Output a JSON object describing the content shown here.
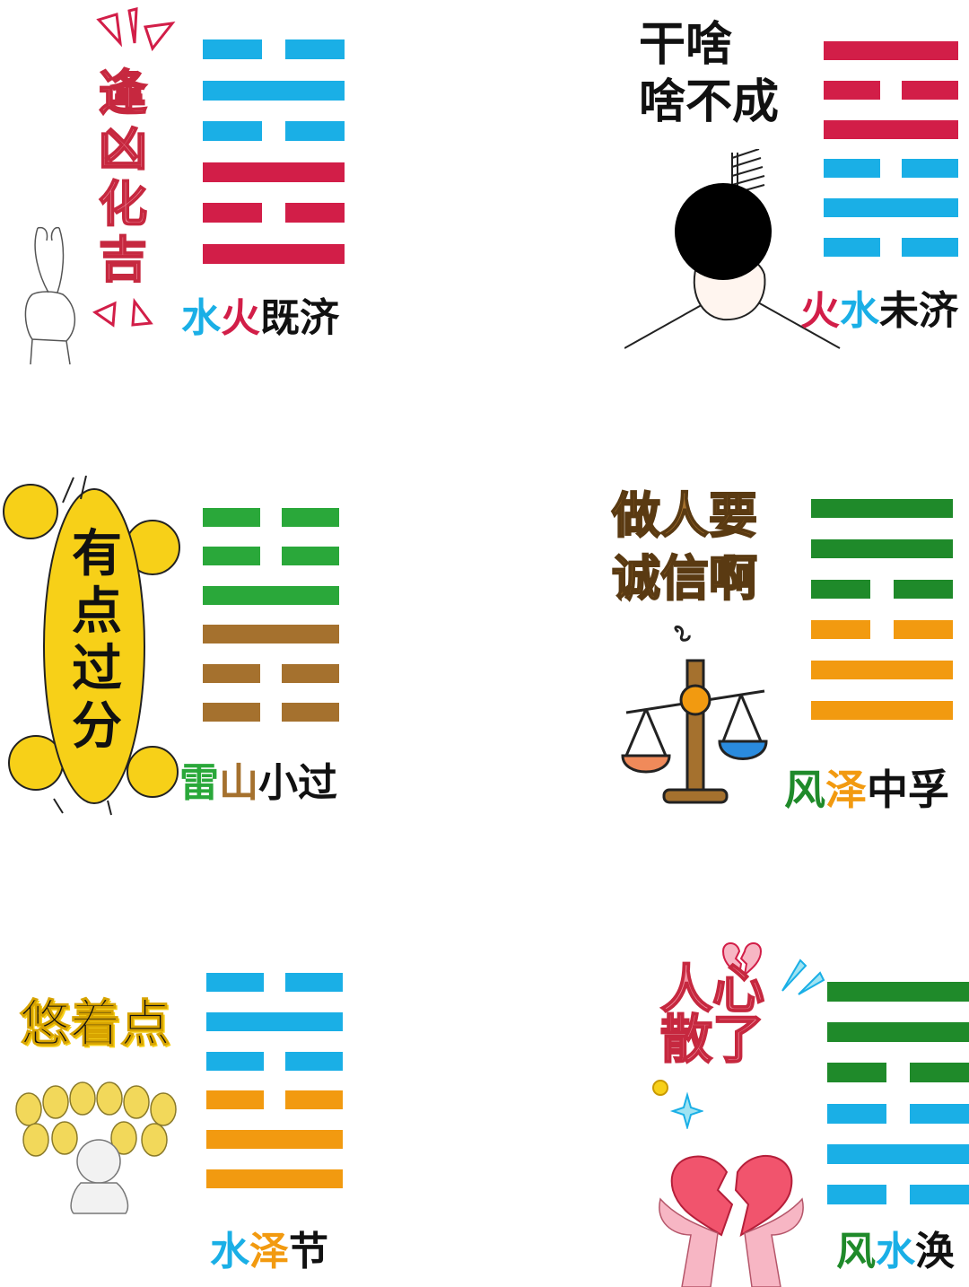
{
  "colors": {
    "blue": "#1aafe6",
    "red": "#d21e48",
    "green": "#2aa83a",
    "dark_green": "#1f8a2a",
    "brown": "#a5712e",
    "orange": "#f29a10",
    "black": "#111111"
  },
  "panels": [
    {
      "sticker_text": "逢凶化吉",
      "name_chars": [
        {
          "ch": "水",
          "color": "blue"
        },
        {
          "ch": "火",
          "color": "red"
        },
        {
          "ch": "既",
          "color": "black"
        },
        {
          "ch": "济",
          "color": "black"
        }
      ],
      "lines": [
        {
          "type": "yin",
          "color": "blue"
        },
        {
          "type": "yang",
          "color": "blue"
        },
        {
          "type": "yin",
          "color": "blue"
        },
        {
          "type": "yang",
          "color": "red"
        },
        {
          "type": "yin",
          "color": "red"
        },
        {
          "type": "yang",
          "color": "red"
        }
      ]
    },
    {
      "sticker_text": "干啥\n啥不成",
      "name_chars": [
        {
          "ch": "火",
          "color": "red"
        },
        {
          "ch": "水",
          "color": "blue"
        },
        {
          "ch": "未",
          "color": "black"
        },
        {
          "ch": "济",
          "color": "black"
        }
      ],
      "lines": [
        {
          "type": "yang",
          "color": "red"
        },
        {
          "type": "yin",
          "color": "red"
        },
        {
          "type": "yang",
          "color": "red"
        },
        {
          "type": "yin",
          "color": "blue"
        },
        {
          "type": "yang",
          "color": "blue"
        },
        {
          "type": "yin",
          "color": "blue"
        }
      ]
    },
    {
      "sticker_text": "有点过分",
      "name_chars": [
        {
          "ch": "雷",
          "color": "green"
        },
        {
          "ch": "山",
          "color": "brown"
        },
        {
          "ch": "小",
          "color": "black"
        },
        {
          "ch": "过",
          "color": "black"
        }
      ],
      "lines": [
        {
          "type": "yin",
          "color": "green"
        },
        {
          "type": "yin",
          "color": "green"
        },
        {
          "type": "yang",
          "color": "green"
        },
        {
          "type": "yang",
          "color": "brown"
        },
        {
          "type": "yin",
          "color": "brown"
        },
        {
          "type": "yin",
          "color": "brown"
        }
      ]
    },
    {
      "sticker_text": "做人要\n诚信啊",
      "name_chars": [
        {
          "ch": "风",
          "color": "dark_green"
        },
        {
          "ch": "泽",
          "color": "orange"
        },
        {
          "ch": "中",
          "color": "black"
        },
        {
          "ch": "孚",
          "color": "black"
        }
      ],
      "lines": [
        {
          "type": "yang",
          "color": "dark_green"
        },
        {
          "type": "yang",
          "color": "dark_green"
        },
        {
          "type": "yin",
          "color": "dark_green"
        },
        {
          "type": "yin",
          "color": "orange"
        },
        {
          "type": "yang",
          "color": "orange"
        },
        {
          "type": "yang",
          "color": "orange"
        }
      ]
    },
    {
      "sticker_text": "悠着点",
      "name_chars": [
        {
          "ch": "水",
          "color": "blue"
        },
        {
          "ch": "泽",
          "color": "orange"
        },
        {
          "ch": "节",
          "color": "black"
        }
      ],
      "lines": [
        {
          "type": "yin",
          "color": "blue"
        },
        {
          "type": "yang",
          "color": "blue"
        },
        {
          "type": "yin",
          "color": "blue"
        },
        {
          "type": "yin",
          "color": "orange"
        },
        {
          "type": "yang",
          "color": "orange"
        },
        {
          "type": "yang",
          "color": "orange"
        }
      ]
    },
    {
      "sticker_text": "人心散了",
      "name_chars": [
        {
          "ch": "风",
          "color": "dark_green"
        },
        {
          "ch": "水",
          "color": "blue"
        },
        {
          "ch": "涣",
          "color": "black"
        }
      ],
      "lines": [
        {
          "type": "yang",
          "color": "dark_green"
        },
        {
          "type": "yang",
          "color": "dark_green"
        },
        {
          "type": "yin",
          "color": "dark_green"
        },
        {
          "type": "yin",
          "color": "blue"
        },
        {
          "type": "yang",
          "color": "blue"
        },
        {
          "type": "yin",
          "color": "blue"
        }
      ]
    }
  ]
}
